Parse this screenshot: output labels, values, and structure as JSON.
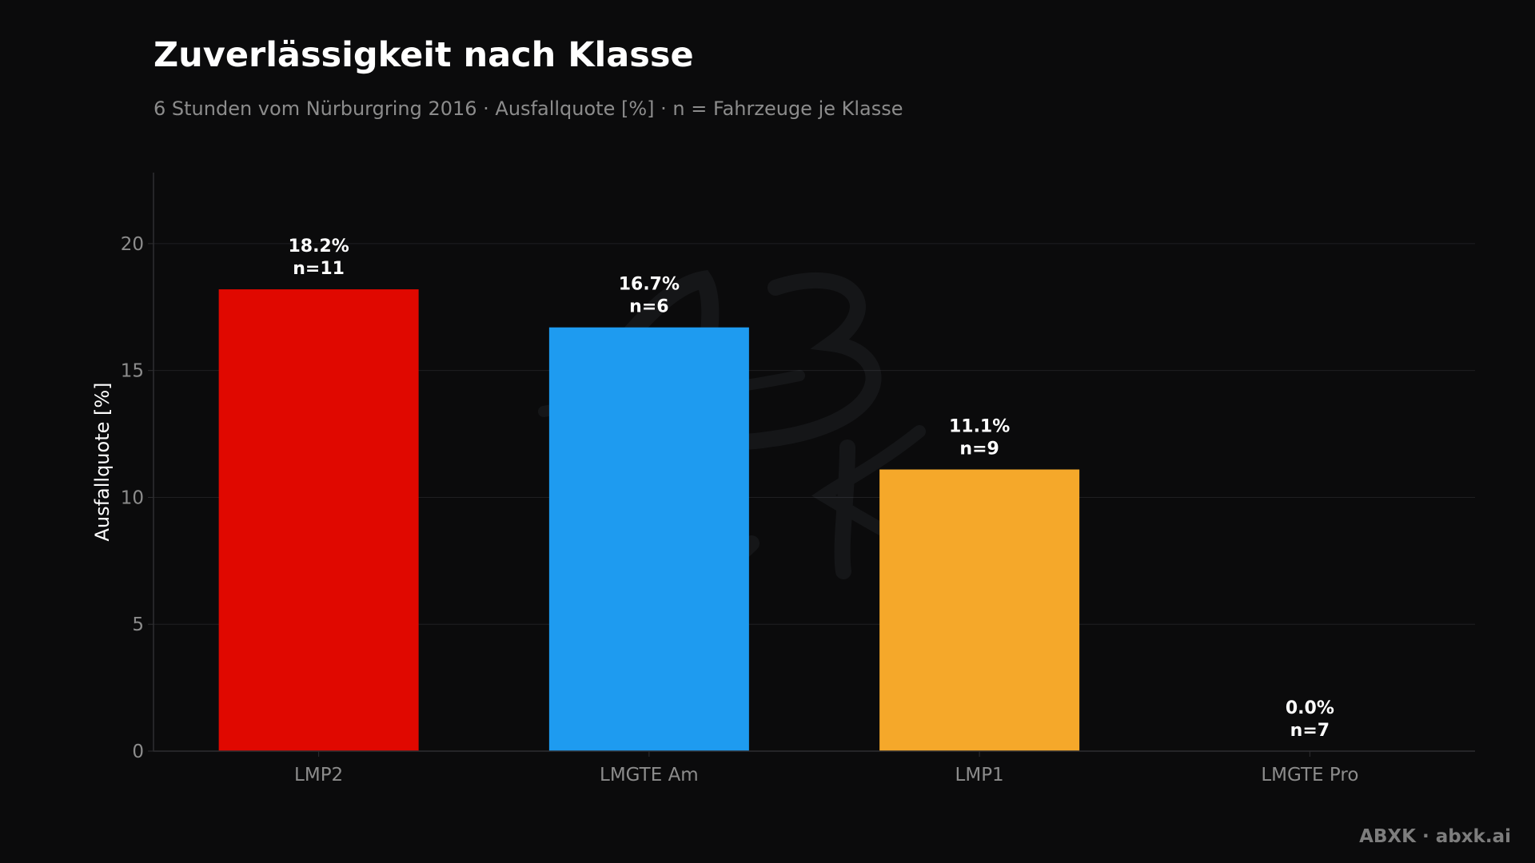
{
  "header": {
    "title": "Zuverlässigkeit nach Klasse",
    "subtitle": "6 Stunden vom Nürburgring 2016 · Ausfallquote [%] · n = Fahrzeuge je Klasse"
  },
  "footer": {
    "credit": "ABXK · abxk.ai"
  },
  "chart_data": {
    "type": "bar",
    "title": "Zuverlässigkeit nach Klasse",
    "subtitle": "6 Stunden vom Nürburgring 2016 · Ausfallquote [%] · n = Fahrzeuge je Klasse",
    "xlabel": "",
    "ylabel": "Ausfallquote [%]",
    "ylim": [
      0,
      22.8
    ],
    "yticks": [
      0,
      5,
      10,
      15,
      20
    ],
    "grid": "horizontal",
    "legend": "none",
    "categories": [
      "LMP2",
      "LMGTE Am",
      "LMP1",
      "LMGTE Pro"
    ],
    "values": [
      18.2,
      16.7,
      11.1,
      0.0
    ],
    "counts": [
      11,
      6,
      9,
      7
    ],
    "value_labels": [
      "18.2%",
      "16.7%",
      "11.1%",
      "0.0%"
    ],
    "count_labels": [
      "n=11",
      "n=6",
      "n=9",
      "n=7"
    ],
    "colors": [
      "#e00800",
      "#1e9bf0",
      "#f5a82a",
      "#8e8e8e"
    ]
  },
  "theme": {
    "background": "#0b0b0c",
    "grid_color": "#1f1f22",
    "axis_color": "#2e2e31",
    "tick_color": "#8c8c8c",
    "label_color": "#ffffff"
  }
}
